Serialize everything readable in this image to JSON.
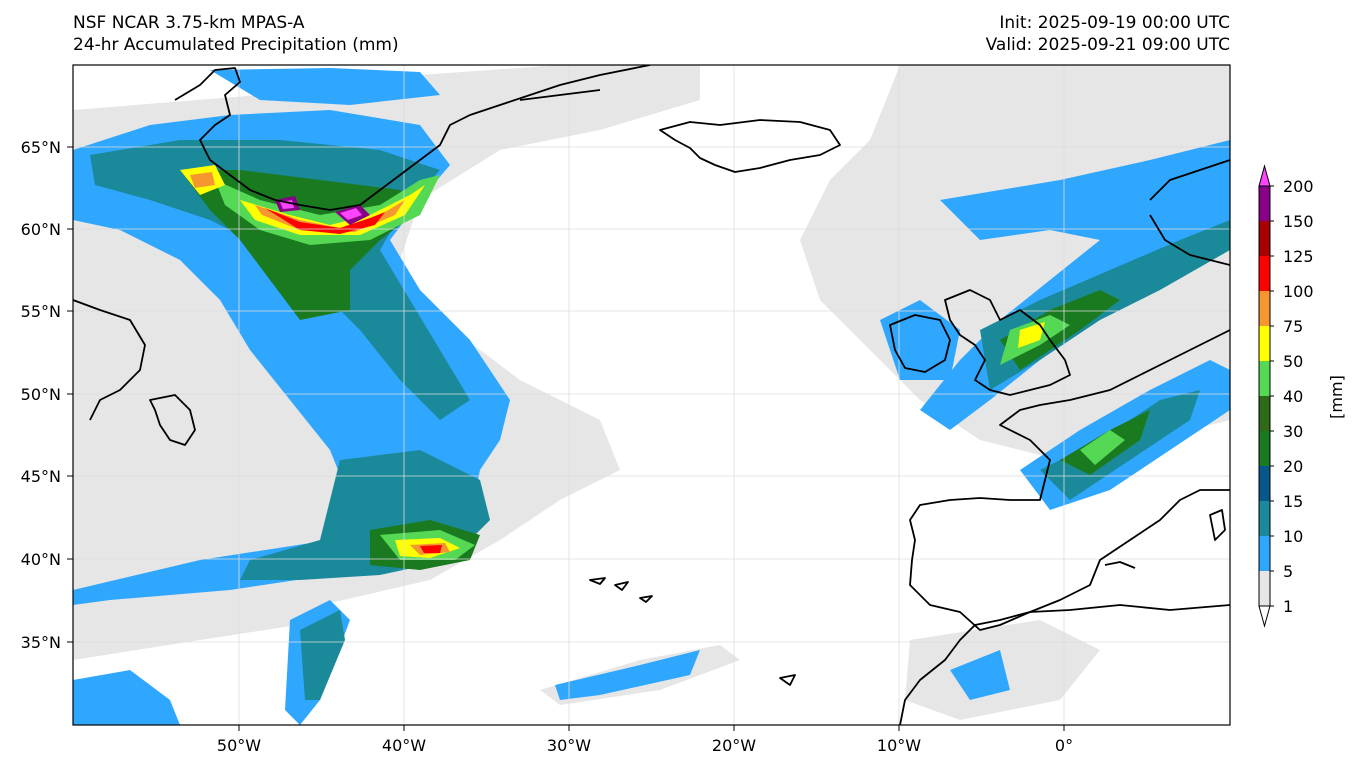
{
  "header": {
    "model_line": "NSF NCAR 3.75-km MPAS-A",
    "field_line": "24-hr Accumulated Precipitation (mm)",
    "init_line": "Init: 2025-09-19 00:00 UTC",
    "valid_line": "Valid: 2025-09-21 09:00 UTC"
  },
  "axes": {
    "lat_labels": [
      "65°N",
      "60°N",
      "55°N",
      "50°N",
      "45°N",
      "40°N",
      "35°N"
    ],
    "lon_labels": [
      "50°W",
      "40°W",
      "30°W",
      "20°W",
      "10°W",
      "0°"
    ]
  },
  "colorbar": {
    "unit_label": "[mm]",
    "levels": [
      "1",
      "5",
      "10",
      "15",
      "20",
      "30",
      "40",
      "50",
      "75",
      "100",
      "125",
      "150",
      "200"
    ],
    "colors": [
      "#e6e6e6",
      "#2fa7ff",
      "#1a8a9a",
      "#07588a",
      "#197a1f",
      "#2e6a1a",
      "#55d955",
      "#ffff00",
      "#f59630",
      "#ff0000",
      "#a60000",
      "#880088",
      "#ff44ff"
    ]
  },
  "colors": {
    "ocean": "#ffffff",
    "coast": "#000000",
    "light_precip": "#e6e6e6",
    "blue_precip": "#2fa7ff",
    "teal_precip": "#1a8a9a",
    "green_precip": "#197a1f",
    "lime_precip": "#55d955",
    "yellow_precip": "#ffff00",
    "orange_precip": "#f59630",
    "red_precip": "#ff0000",
    "magenta_precip": "#ff44ff"
  }
}
